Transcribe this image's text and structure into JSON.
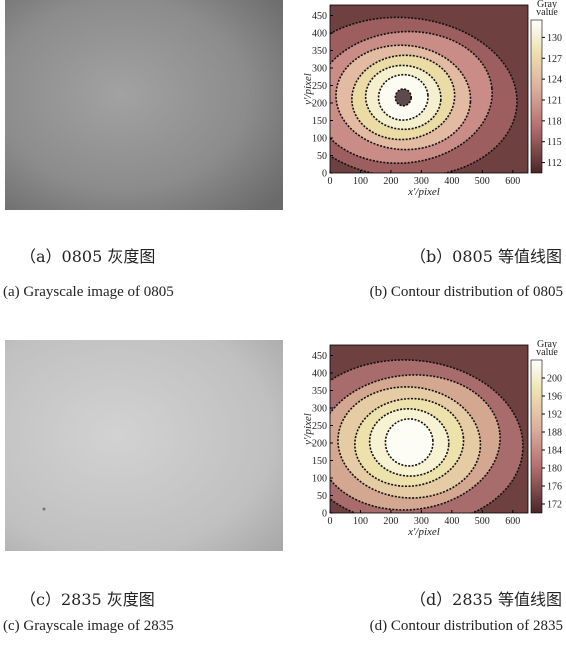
{
  "figures": [
    {
      "caption_zh": "（a）0805 灰度图",
      "caption_en": "(a) Grayscale image of 0805"
    },
    {
      "caption_zh": "（b）0805 等值线图",
      "caption_en": "(b) Contour distribution of 0805",
      "x_label": "x'/pixel",
      "y_label": "y'/pixel",
      "xlim": [
        0,
        650
      ],
      "xticks": [
        0,
        100,
        200,
        300,
        400,
        500,
        600
      ],
      "ylim": [
        0,
        480
      ],
      "yticks": [
        0,
        50,
        100,
        150,
        200,
        250,
        300,
        350,
        400,
        450
      ],
      "colorbar_title": [
        "Gray",
        "value"
      ],
      "colorbar_lim": [
        110.5,
        132.5
      ],
      "colorbar_ticks": [
        112,
        115,
        118,
        121,
        124,
        127,
        130
      ]
    },
    {
      "caption_zh": "（c）2835 灰度图",
      "caption_en": "(c) Grayscale image of 2835"
    },
    {
      "caption_zh": "（d）2835 等值线图",
      "caption_en": "(d) Contour distribution of 2835",
      "x_label": "x'/pixel",
      "y_label": "y'/pixel",
      "xlim": [
        0,
        650
      ],
      "xticks": [
        0,
        100,
        200,
        300,
        400,
        500,
        600
      ],
      "ylim": [
        0,
        480
      ],
      "yticks": [
        0,
        50,
        100,
        150,
        200,
        250,
        300,
        350,
        400,
        450
      ],
      "colorbar_title": [
        "Gray",
        "value"
      ],
      "colorbar_lim": [
        170,
        204
      ],
      "colorbar_ticks": [
        172,
        176,
        180,
        184,
        188,
        192,
        196,
        200
      ]
    }
  ]
}
